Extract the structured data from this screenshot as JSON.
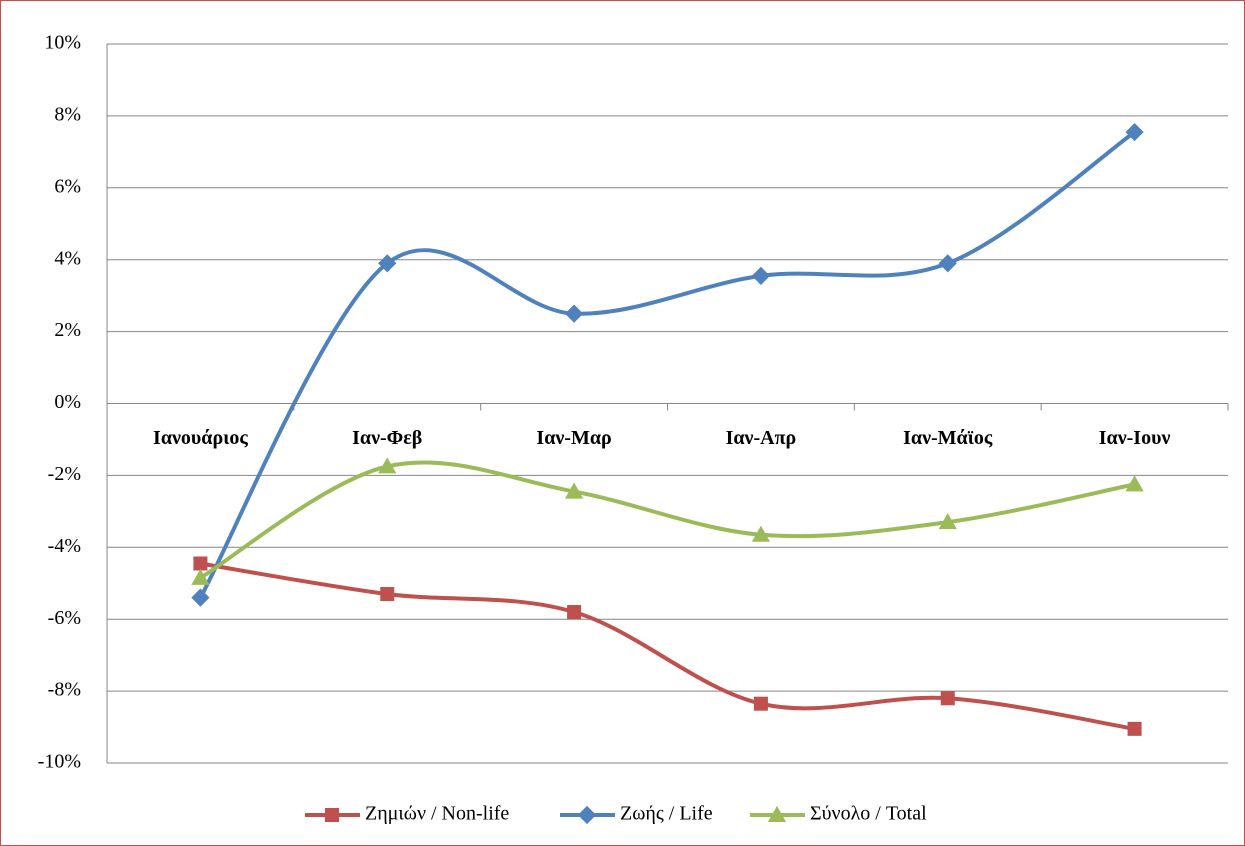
{
  "chart_data": {
    "type": "line",
    "categories": [
      "Ιανουάριος",
      "Ιαν-Φεβ",
      "Ιαν-Μαρ",
      "Ιαν-Απρ",
      "Ιαν-Μάϊος",
      "Ιαν-Ιουν"
    ],
    "series": [
      {
        "name": "Ζημιών / Non-life",
        "color": "#C0504D",
        "marker": "square",
        "values": [
          -4.45,
          -5.3,
          -5.8,
          -8.35,
          -8.2,
          -9.05
        ]
      },
      {
        "name": "Ζωής / Life",
        "color": "#4F81BD",
        "marker": "diamond",
        "values": [
          -5.4,
          3.9,
          2.5,
          3.55,
          3.9,
          7.55
        ]
      },
      {
        "name": "Σύνολο / Total",
        "color": "#9BBB59",
        "marker": "triangle",
        "values": [
          -4.85,
          -1.75,
          -2.45,
          -3.65,
          -3.3,
          -2.25
        ]
      }
    ],
    "ylim": [
      -10,
      10
    ],
    "yticks": [
      {
        "value": -10,
        "label": "-10%"
      },
      {
        "value": -8,
        "label": "-8%"
      },
      {
        "value": -6,
        "label": "-6%"
      },
      {
        "value": -4,
        "label": "-4%"
      },
      {
        "value": -2,
        "label": "-2%"
      },
      {
        "value": 0,
        "label": "0%"
      },
      {
        "value": 2,
        "label": "2%"
      },
      {
        "value": 4,
        "label": "4%"
      },
      {
        "value": 6,
        "label": "6%"
      },
      {
        "value": 8,
        "label": "8%"
      },
      {
        "value": 10,
        "label": "10%"
      }
    ],
    "grid": true,
    "smooth": true,
    "legend": "bottom"
  }
}
